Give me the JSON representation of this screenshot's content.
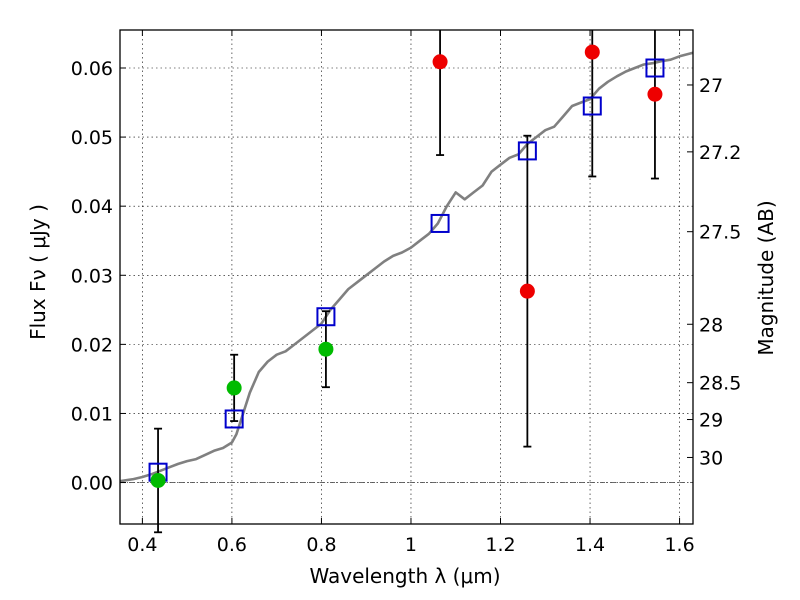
{
  "chart_data": {
    "type": "scatter",
    "xlabel": "Wavelength  λ (μm)",
    "ylabel": "Flux  Fν  ( μJy )",
    "y2label": "Magnitude (AB)",
    "xlim": [
      0.35,
      1.63
    ],
    "ylim": [
      -0.006,
      0.0655
    ],
    "xticks": [
      0.4,
      0.6,
      0.8,
      1.0,
      1.2,
      1.4,
      1.6
    ],
    "xtick_labels": [
      "0.4",
      "0.6",
      "0.8",
      "1",
      "1.2",
      "1.4",
      "1.6"
    ],
    "yticks": [
      0.0,
      0.01,
      0.02,
      0.03,
      0.04,
      0.05,
      0.06
    ],
    "ytick_labels": [
      "0.00",
      "0.01",
      "0.02",
      "0.03",
      "0.04",
      "0.05",
      "0.06"
    ],
    "y2ticks": [
      27,
      27.2,
      27.5,
      28,
      28.5,
      29,
      30
    ],
    "y2tick_labels": [
      "27",
      "27.2",
      "27.5",
      "28",
      "28.5",
      "29",
      "30"
    ],
    "grid": true,
    "colors": {
      "model": "#808080",
      "green_points": "#00bb00",
      "red_points": "#ee0000",
      "squares": "#0000cc",
      "errorbars": "#000000"
    },
    "model_spectrum": {
      "x": [
        0.35,
        0.38,
        0.4,
        0.42,
        0.44,
        0.46,
        0.48,
        0.5,
        0.52,
        0.54,
        0.56,
        0.58,
        0.6,
        0.61,
        0.62,
        0.64,
        0.66,
        0.68,
        0.7,
        0.72,
        0.74,
        0.76,
        0.78,
        0.8,
        0.82,
        0.84,
        0.86,
        0.88,
        0.9,
        0.92,
        0.94,
        0.96,
        0.98,
        1.0,
        1.02,
        1.04,
        1.06,
        1.08,
        1.1,
        1.12,
        1.14,
        1.16,
        1.18,
        1.2,
        1.22,
        1.24,
        1.26,
        1.28,
        1.3,
        1.32,
        1.34,
        1.36,
        1.38,
        1.4,
        1.42,
        1.44,
        1.46,
        1.48,
        1.5,
        1.52,
        1.54,
        1.56,
        1.58,
        1.6,
        1.63
      ],
      "y": [
        0.0002,
        0.0005,
        0.0008,
        0.0012,
        0.0017,
        0.0022,
        0.0027,
        0.0031,
        0.0034,
        0.004,
        0.0046,
        0.005,
        0.0058,
        0.007,
        0.009,
        0.013,
        0.016,
        0.0175,
        0.0185,
        0.019,
        0.02,
        0.021,
        0.022,
        0.023,
        0.025,
        0.0265,
        0.028,
        0.029,
        0.03,
        0.031,
        0.032,
        0.0328,
        0.0333,
        0.034,
        0.035,
        0.036,
        0.0375,
        0.04,
        0.042,
        0.041,
        0.042,
        0.043,
        0.045,
        0.046,
        0.047,
        0.0475,
        0.049,
        0.05,
        0.051,
        0.0515,
        0.053,
        0.0545,
        0.055,
        0.0555,
        0.057,
        0.058,
        0.0588,
        0.0595,
        0.06,
        0.0605,
        0.0607,
        0.061,
        0.0612,
        0.0617,
        0.0622
      ]
    },
    "model_bandpass_squares": {
      "x": [
        0.435,
        0.605,
        0.81,
        1.065,
        1.26,
        1.405,
        1.545
      ],
      "y": [
        0.0015,
        0.0092,
        0.024,
        0.0375,
        0.048,
        0.0545,
        0.06
      ]
    },
    "green_points": {
      "x": [
        0.435,
        0.605,
        0.81
      ],
      "y": [
        0.0003,
        0.0137,
        0.0193
      ],
      "yerr": [
        0.0075,
        0.0048,
        0.0055
      ]
    },
    "red_points": {
      "x": [
        1.065,
        1.26,
        1.405,
        1.545
      ],
      "y": [
        0.0609,
        0.0277,
        0.0623,
        0.0562
      ],
      "yerr": [
        0.0135,
        0.0225,
        0.018,
        0.0122
      ]
    }
  }
}
